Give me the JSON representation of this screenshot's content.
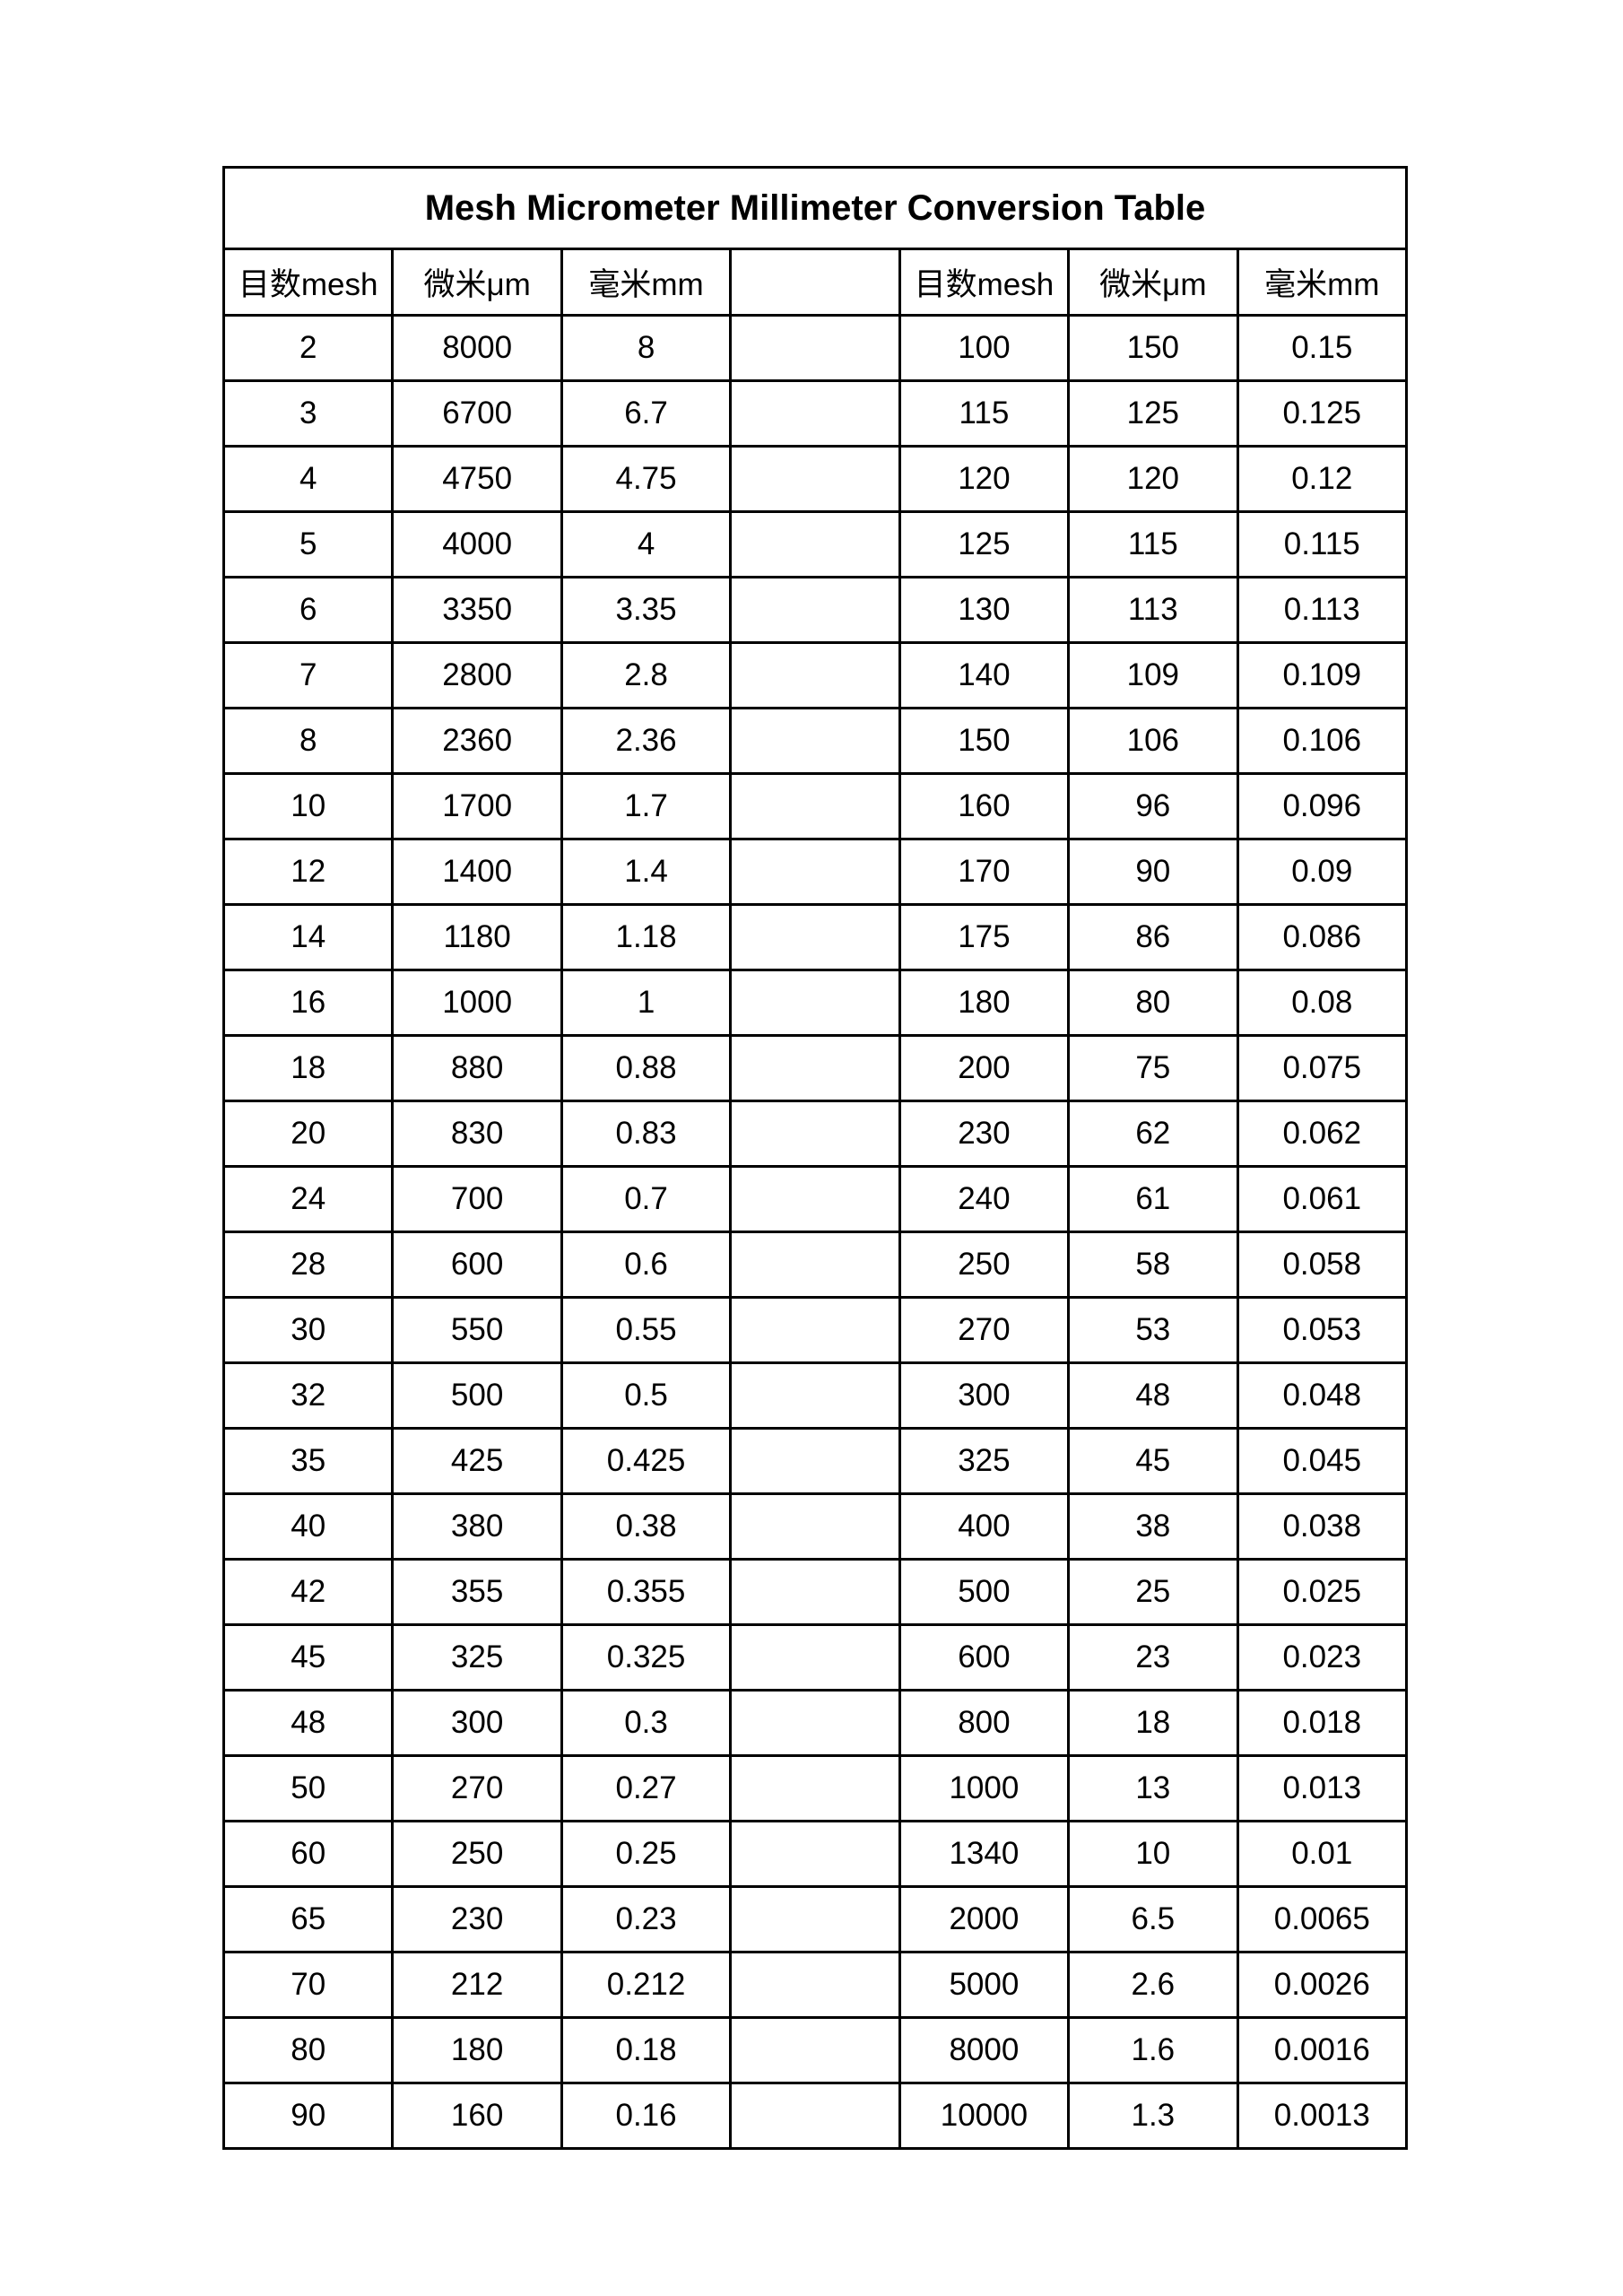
{
  "title": "Mesh Micrometer Millimeter Conversion Table",
  "headers": [
    "目数mesh",
    "微米μm",
    "毫米mm",
    "",
    "目数mesh",
    "微米μm",
    "毫米mm"
  ],
  "rows": [
    [
      "2",
      "8000",
      "8",
      "",
      "100",
      "150",
      "0.15"
    ],
    [
      "3",
      "6700",
      "6.7",
      "",
      "115",
      "125",
      "0.125"
    ],
    [
      "4",
      "4750",
      "4.75",
      "",
      "120",
      "120",
      "0.12"
    ],
    [
      "5",
      "4000",
      "4",
      "",
      "125",
      "115",
      "0.115"
    ],
    [
      "6",
      "3350",
      "3.35",
      "",
      "130",
      "113",
      "0.113"
    ],
    [
      "7",
      "2800",
      "2.8",
      "",
      "140",
      "109",
      "0.109"
    ],
    [
      "8",
      "2360",
      "2.36",
      "",
      "150",
      "106",
      "0.106"
    ],
    [
      "10",
      "1700",
      "1.7",
      "",
      "160",
      "96",
      "0.096"
    ],
    [
      "12",
      "1400",
      "1.4",
      "",
      "170",
      "90",
      "0.09"
    ],
    [
      "14",
      "1180",
      "1.18",
      "",
      "175",
      "86",
      "0.086"
    ],
    [
      "16",
      "1000",
      "1",
      "",
      "180",
      "80",
      "0.08"
    ],
    [
      "18",
      "880",
      "0.88",
      "",
      "200",
      "75",
      "0.075"
    ],
    [
      "20",
      "830",
      "0.83",
      "",
      "230",
      "62",
      "0.062"
    ],
    [
      "24",
      "700",
      "0.7",
      "",
      "240",
      "61",
      "0.061"
    ],
    [
      "28",
      "600",
      "0.6",
      "",
      "250",
      "58",
      "0.058"
    ],
    [
      "30",
      "550",
      "0.55",
      "",
      "270",
      "53",
      "0.053"
    ],
    [
      "32",
      "500",
      "0.5",
      "",
      "300",
      "48",
      "0.048"
    ],
    [
      "35",
      "425",
      "0.425",
      "",
      "325",
      "45",
      "0.045"
    ],
    [
      "40",
      "380",
      "0.38",
      "",
      "400",
      "38",
      "0.038"
    ],
    [
      "42",
      "355",
      "0.355",
      "",
      "500",
      "25",
      "0.025"
    ],
    [
      "45",
      "325",
      "0.325",
      "",
      "600",
      "23",
      "0.023"
    ],
    [
      "48",
      "300",
      "0.3",
      "",
      "800",
      "18",
      "0.018"
    ],
    [
      "50",
      "270",
      "0.27",
      "",
      "1000",
      "13",
      "0.013"
    ],
    [
      "60",
      "250",
      "0.25",
      "",
      "1340",
      "10",
      "0.01"
    ],
    [
      "65",
      "230",
      "0.23",
      "",
      "2000",
      "6.5",
      "0.0065"
    ],
    [
      "70",
      "212",
      "0.212",
      "",
      "5000",
      "2.6",
      "0.0026"
    ],
    [
      "80",
      "180",
      "0.18",
      "",
      "8000",
      "1.6",
      "0.0016"
    ],
    [
      "90",
      "160",
      "0.16",
      "",
      "10000",
      "1.3",
      "0.0013"
    ]
  ]
}
